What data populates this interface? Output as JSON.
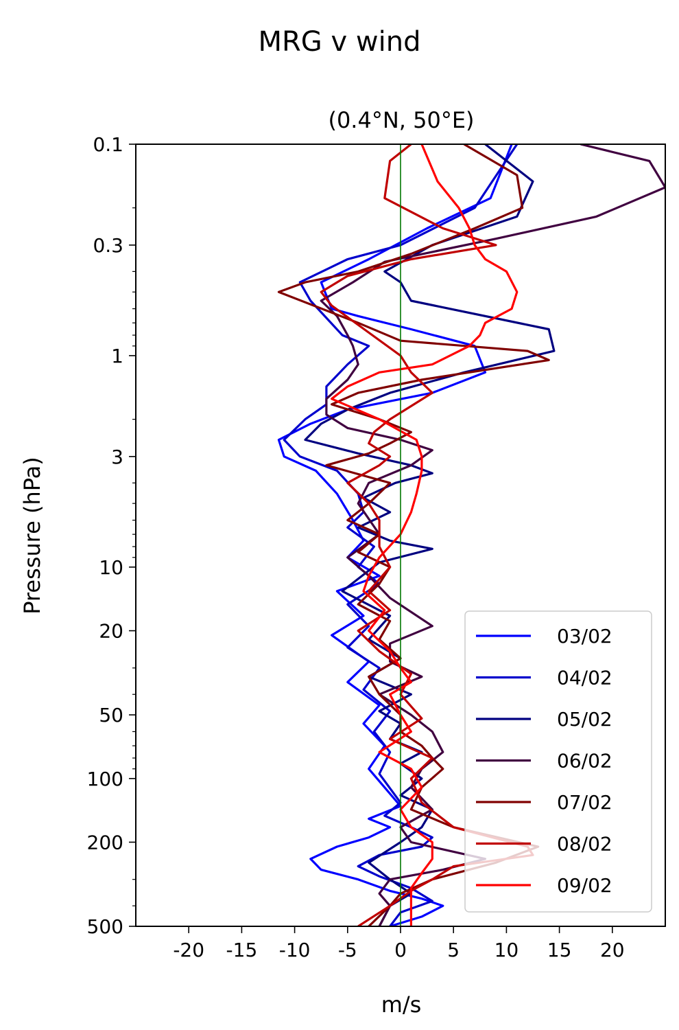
{
  "chart_data": {
    "type": "line",
    "title": "MRG v wind",
    "subtitle": "(0.4°N, 50°E)",
    "xlabel": "m/s",
    "ylabel": "Pressure (hPa)",
    "xlim": [
      -25,
      25
    ],
    "ylim": [
      500,
      0.1
    ],
    "yscale": "log",
    "grid": false,
    "legend_position": "lower-right",
    "x_ticks": [
      -20,
      -15,
      -10,
      -5,
      0,
      5,
      10,
      15,
      20
    ],
    "x_tick_labels": [
      "-20",
      "-15",
      "-10",
      "-5",
      "0",
      "5",
      "10",
      "15",
      "20"
    ],
    "y_ticks": [
      0.1,
      0.3,
      1,
      3,
      10,
      20,
      50,
      100,
      200,
      500
    ],
    "y_tick_labels": [
      "0.1",
      "0.3",
      "1",
      "3",
      "10",
      "20",
      "50",
      "100",
      "200",
      "500"
    ],
    "y_minor_ticks": [
      0.2,
      0.4,
      0.5,
      0.6,
      0.7,
      0.8,
      0.9,
      2,
      4,
      5,
      6,
      7,
      8,
      9,
      30,
      40,
      60,
      70,
      80,
      90,
      300,
      400
    ],
    "reference_line": {
      "x": 0,
      "color": "#007700"
    },
    "series": [
      {
        "name": "03/02",
        "color": "#0000ff",
        "x": [
          10.5,
          8.5,
          2.5,
          -3,
          -7.5,
          -6.5,
          -4,
          1,
          7,
          8,
          3,
          -5,
          -8.5,
          -11.5,
          -11,
          -8,
          -6,
          -4.5,
          -3.5,
          -5,
          -2,
          -6,
          -3.5,
          -6.5,
          -3,
          -5,
          -2,
          -3.5,
          -1.5,
          -3,
          0,
          -3,
          -1,
          -3,
          -6,
          -8.5,
          -7.5,
          -4,
          -1,
          2,
          4,
          2,
          -1
        ],
        "y": [
          0.1,
          0.18,
          0.25,
          0.35,
          0.45,
          0.6,
          0.65,
          0.75,
          0.9,
          1.2,
          1.5,
          1.8,
          2.1,
          2.5,
          3.0,
          3.5,
          4.5,
          6.0,
          7.5,
          9.0,
          11,
          13,
          17,
          21,
          28,
          35,
          45,
          55,
          70,
          90,
          135,
          155,
          170,
          190,
          210,
          240,
          270,
          300,
          340,
          370,
          400,
          450,
          500
        ]
      },
      {
        "name": "04/02",
        "color": "#0000cc",
        "x": [
          11,
          7,
          0,
          -5,
          -9.5,
          -8.5,
          -5.5,
          -3,
          -5,
          -7,
          -7,
          -9,
          -11,
          -9.5,
          -6,
          -4,
          -3.5,
          -5,
          -2.5,
          -4,
          -2,
          -5,
          -3,
          -5,
          -2,
          -3.5,
          -1,
          -2.5,
          -1,
          -2,
          0,
          -1.5,
          1,
          3,
          2,
          -2,
          -4,
          -2,
          1,
          3,
          0,
          -1
        ],
        "y": [
          0.1,
          0.2,
          0.3,
          0.35,
          0.45,
          0.55,
          0.8,
          0.9,
          1.1,
          1.4,
          1.7,
          2.0,
          2.5,
          3.0,
          3.5,
          4.5,
          5.5,
          6.5,
          8.0,
          10,
          12,
          15,
          19,
          24,
          30,
          38,
          48,
          60,
          75,
          95,
          130,
          150,
          170,
          190,
          210,
          230,
          260,
          290,
          330,
          380,
          430,
          500
        ]
      },
      {
        "name": "05/02",
        "color": "#000080",
        "x": [
          8,
          12.5,
          11,
          3,
          -1.5,
          0,
          1,
          14,
          14.5,
          6,
          -1,
          -5,
          -7.5,
          -9,
          -4,
          1,
          3,
          -0.5,
          -3.5,
          -1,
          -4,
          -1,
          3,
          -2,
          -5.5,
          -1,
          -3,
          0,
          -3,
          1,
          -2,
          0,
          -1,
          2,
          0,
          2,
          0,
          3,
          2,
          0,
          -3,
          -1,
          1,
          -1,
          -2
        ],
        "y": [
          0.1,
          0.15,
          0.22,
          0.3,
          0.4,
          0.45,
          0.55,
          0.75,
          0.95,
          1.2,
          1.5,
          1.8,
          2.1,
          2.5,
          2.9,
          3.3,
          3.6,
          4.0,
          4.7,
          5.5,
          6.5,
          7.5,
          8.2,
          9.5,
          13,
          17,
          22,
          27,
          33,
          40,
          48,
          55,
          65,
          75,
          85,
          100,
          120,
          140,
          170,
          200,
          250,
          300,
          350,
          400,
          500
        ]
      },
      {
        "name": "06/02",
        "color": "#400040",
        "x": [
          17,
          23.5,
          25,
          18.5,
          9,
          -1.5,
          -4.5,
          -7.5,
          -6,
          -5,
          -4.5,
          -4,
          -5,
          -7,
          -7,
          -5,
          0,
          3,
          1,
          -3,
          -4,
          -2,
          -5,
          -3,
          -1,
          3,
          -1,
          -1,
          2,
          -2,
          1,
          3,
          4,
          2,
          1,
          3,
          0,
          1,
          8,
          4,
          -1,
          -2,
          -1,
          -2
        ],
        "y": [
          0.1,
          0.12,
          0.16,
          0.22,
          0.28,
          0.36,
          0.45,
          0.55,
          0.65,
          0.8,
          0.9,
          1.1,
          1.3,
          1.6,
          1.9,
          2.2,
          2.5,
          2.8,
          3.3,
          4.0,
          5.0,
          7.0,
          9.0,
          11,
          14,
          19,
          23,
          28,
          33,
          40,
          50,
          60,
          75,
          90,
          110,
          140,
          170,
          200,
          240,
          270,
          300,
          350,
          400,
          500
        ]
      },
      {
        "name": "07/02",
        "color": "#800000",
        "x": [
          6,
          11,
          11.5,
          7,
          1,
          -4,
          -9,
          -11.5,
          -4,
          0,
          12,
          14,
          2,
          -4,
          -6.5,
          -2,
          1,
          -1,
          -3,
          -7,
          -1,
          -3,
          -5,
          -2,
          -4,
          -1,
          -2,
          -4,
          -1,
          -2,
          0,
          -3,
          -2,
          0,
          0,
          2,
          3,
          4,
          2,
          1,
          5,
          13,
          9,
          3,
          0,
          -1,
          -3
        ],
        "y": [
          0.1,
          0.14,
          0.2,
          0.25,
          0.33,
          0.4,
          0.45,
          0.5,
          0.7,
          0.85,
          0.95,
          1.05,
          1.3,
          1.5,
          1.7,
          2.0,
          2.3,
          2.6,
          2.9,
          3.3,
          4.0,
          5.0,
          6.0,
          7.0,
          8.5,
          10,
          12,
          15,
          18,
          22,
          27,
          33,
          40,
          50,
          60,
          70,
          80,
          90,
          110,
          140,
          170,
          210,
          250,
          300,
          350,
          400,
          500
        ]
      },
      {
        "name": "08/02",
        "color": "#c00000",
        "x": [
          1,
          -1,
          -1.5,
          4,
          9,
          1,
          -5,
          -7.5,
          -6.5,
          0,
          1,
          3,
          -1,
          -2.5,
          -3,
          -1,
          -2,
          -5,
          -3,
          -2,
          -2,
          -1,
          -3,
          -1,
          -4,
          -2,
          1,
          0,
          2,
          -1,
          3,
          1,
          2,
          5,
          12,
          12.5,
          5,
          3,
          1,
          -1,
          -4
        ],
        "y": [
          0.1,
          0.12,
          0.18,
          0.25,
          0.3,
          0.35,
          0.42,
          0.5,
          0.58,
          1.0,
          1.2,
          1.5,
          2.0,
          2.3,
          2.6,
          3.0,
          3.3,
          4.0,
          5.0,
          6.0,
          8.0,
          10,
          13,
          16,
          20,
          25,
          32,
          40,
          52,
          65,
          80,
          100,
          130,
          170,
          210,
          230,
          260,
          300,
          340,
          400,
          500
        ]
      },
      {
        "name": "09/02",
        "color": "#ff0000",
        "x": [
          2,
          3.5,
          5.5,
          6.5,
          7,
          8,
          10,
          11,
          10.5,
          8,
          7.5,
          6.5,
          3,
          -2,
          -5,
          -6.5,
          -2,
          1.5,
          2,
          2,
          1.5,
          1,
          0,
          -2,
          -3,
          -3.5,
          -1.5,
          -3,
          -1,
          0,
          1,
          -1,
          0,
          1,
          -2,
          1,
          2,
          0,
          1,
          3,
          3,
          2,
          1,
          1,
          1,
          1
        ],
        "y": [
          0.1,
          0.15,
          0.2,
          0.25,
          0.3,
          0.35,
          0.4,
          0.5,
          0.6,
          0.7,
          0.8,
          0.9,
          1.1,
          1.2,
          1.4,
          1.6,
          2.0,
          2.5,
          3.0,
          3.5,
          4.5,
          5.5,
          7.0,
          9.0,
          11,
          13,
          16,
          20,
          25,
          30,
          35,
          40,
          50,
          60,
          75,
          90,
          110,
          140,
          170,
          200,
          240,
          280,
          330,
          380,
          430,
          500
        ]
      }
    ]
  }
}
